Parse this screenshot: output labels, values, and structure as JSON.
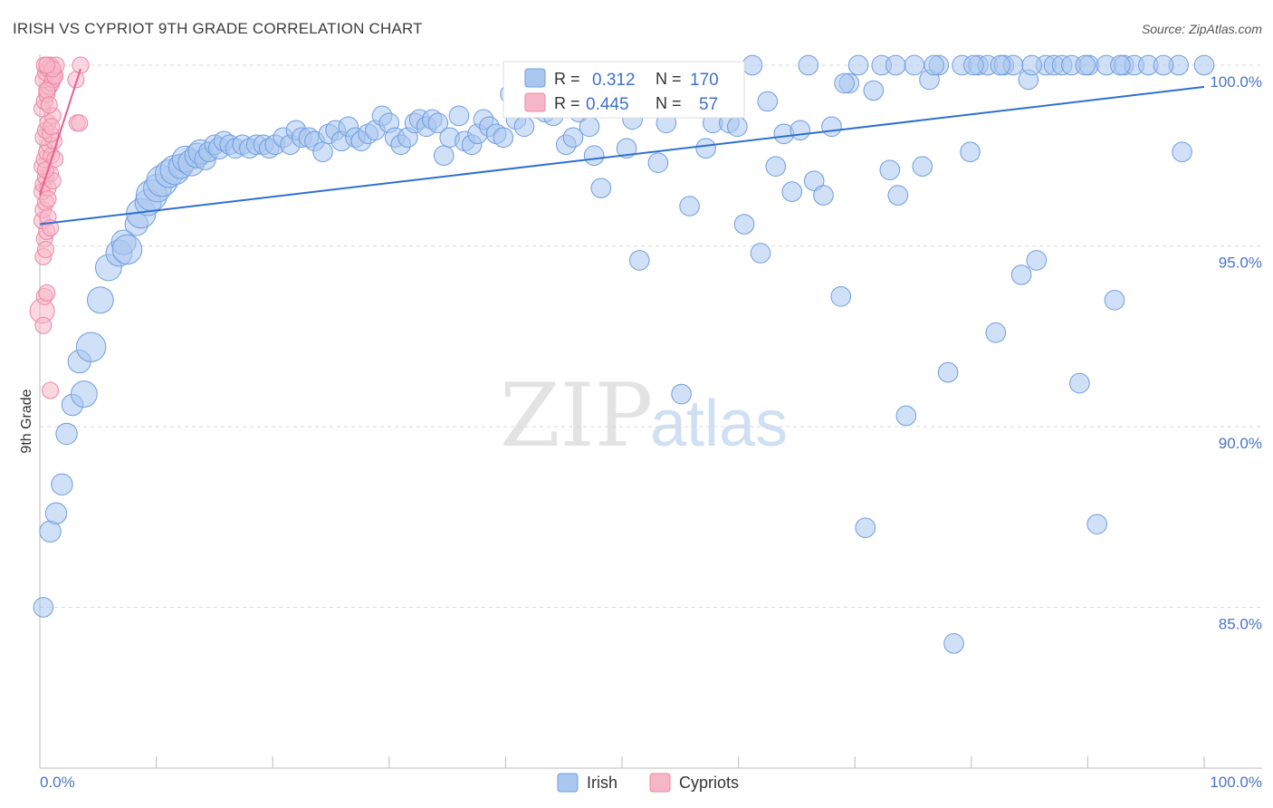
{
  "title": "IRISH VS CYPRIOT 9TH GRADE CORRELATION CHART",
  "source": "Source: ZipAtlas.com",
  "watermark": {
    "zip": "ZIP",
    "atlas": "atlas"
  },
  "colors": {
    "irish_fill": "#a9c7ef",
    "irish_stroke": "#6f9de0",
    "irish_line": "#2f6fd0",
    "cypriot_fill": "#f7b6c8",
    "cypriot_stroke": "#ec86a5",
    "cypriot_line": "#e8608e",
    "grid": "#d9d9d9",
    "tick_text": "#4a74c4"
  },
  "stats": {
    "irish": {
      "r_label": "R =",
      "r_value": "0.312",
      "n_label": "N =",
      "n_value": "170"
    },
    "cypriots": {
      "r_label": "R =",
      "r_value": "0.445",
      "n_label": "N =",
      "n_value": "57"
    }
  },
  "chart_data": {
    "type": "scatter",
    "title": "IRISH VS CYPRIOT 9TH GRADE CORRELATION CHART",
    "xlabel": "",
    "ylabel": "9th Grade",
    "xlim": [
      0,
      100
    ],
    "ylim": [
      80.8,
      100.3
    ],
    "x_tick_labels": [
      "0.0%",
      "100.0%"
    ],
    "y_ticks": [
      100,
      95,
      90,
      85
    ],
    "y_tick_labels": [
      "100.0%",
      "95.0%",
      "90.0%",
      "85.0%"
    ],
    "legend": [
      "Irish",
      "Cypriots"
    ],
    "series": [
      {
        "name": "Irish",
        "trendline": {
          "x": [
            0,
            100
          ],
          "y": [
            95.6,
            99.4
          ]
        },
        "points": [
          [
            0.3,
            85.0,
            1.2
          ],
          [
            0.9,
            87.1,
            1.3
          ],
          [
            1.4,
            87.6,
            1.3
          ],
          [
            1.9,
            88.4,
            1.3
          ],
          [
            2.3,
            89.8,
            1.3
          ],
          [
            2.8,
            90.6,
            1.3
          ],
          [
            3.4,
            91.8,
            1.4
          ],
          [
            3.8,
            90.9,
            1.6
          ],
          [
            4.4,
            92.2,
            1.8
          ],
          [
            5.2,
            93.5,
            1.6
          ],
          [
            5.9,
            94.4,
            1.6
          ],
          [
            6.8,
            94.8,
            1.6
          ],
          [
            7.2,
            95.1,
            1.5
          ],
          [
            7.5,
            94.9,
            1.8
          ],
          [
            8.3,
            95.6,
            1.4
          ],
          [
            8.7,
            95.9,
            1.8
          ],
          [
            9.3,
            96.2,
            1.6
          ],
          [
            9.6,
            96.4,
            1.9
          ],
          [
            10.1,
            96.6,
            1.7
          ],
          [
            10.5,
            96.8,
            1.9
          ],
          [
            11.1,
            97.0,
            1.7
          ],
          [
            11.6,
            97.1,
            1.8
          ],
          [
            12.1,
            97.2,
            1.5
          ],
          [
            12.5,
            97.4,
            1.6
          ],
          [
            13.0,
            97.3,
            1.6
          ],
          [
            13.5,
            97.5,
            1.5
          ],
          [
            13.8,
            97.6,
            1.5
          ],
          [
            14.2,
            97.4,
            1.3
          ],
          [
            14.5,
            97.6,
            1.2
          ],
          [
            15.0,
            97.8,
            1.2
          ],
          [
            15.4,
            97.7,
            1.3
          ],
          [
            15.8,
            97.9,
            1.2
          ],
          [
            16.3,
            97.8,
            1.2
          ],
          [
            16.8,
            97.7,
            1.2
          ],
          [
            17.4,
            97.8,
            1.2
          ],
          [
            18.0,
            97.7,
            1.2
          ],
          [
            18.6,
            97.8,
            1.2
          ],
          [
            19.2,
            97.8,
            1.2
          ],
          [
            19.7,
            97.7,
            1.2
          ],
          [
            20.2,
            97.8,
            1.2
          ],
          [
            20.9,
            98.0,
            1.2
          ],
          [
            21.5,
            97.8,
            1.2
          ],
          [
            22.0,
            98.2,
            1.2
          ],
          [
            22.5,
            98.0,
            1.2
          ],
          [
            23.1,
            98.0,
            1.2
          ],
          [
            23.6,
            97.9,
            1.2
          ],
          [
            24.3,
            97.6,
            1.2
          ],
          [
            24.8,
            98.1,
            1.2
          ],
          [
            25.4,
            98.2,
            1.2
          ],
          [
            25.9,
            97.9,
            1.2
          ],
          [
            26.5,
            98.3,
            1.2
          ],
          [
            27.1,
            98.0,
            1.2
          ],
          [
            27.6,
            97.9,
            1.2
          ],
          [
            28.2,
            98.1,
            1.2
          ],
          [
            28.8,
            98.2,
            1.2
          ],
          [
            29.4,
            98.6,
            1.2
          ],
          [
            30.0,
            98.4,
            1.2
          ],
          [
            30.5,
            98.0,
            1.2
          ],
          [
            31.0,
            97.8,
            1.2
          ],
          [
            31.6,
            98.0,
            1.2
          ],
          [
            32.2,
            98.4,
            1.2
          ],
          [
            32.6,
            98.5,
            1.2
          ],
          [
            33.2,
            98.3,
            1.2
          ],
          [
            33.7,
            98.5,
            1.2
          ],
          [
            34.2,
            98.4,
            1.2
          ],
          [
            34.7,
            97.5,
            1.2
          ],
          [
            35.2,
            98.0,
            1.2
          ],
          [
            36.0,
            98.6,
            1.2
          ],
          [
            36.5,
            97.9,
            1.2
          ],
          [
            37.1,
            97.8,
            1.2
          ],
          [
            37.6,
            98.1,
            1.2
          ],
          [
            38.1,
            98.5,
            1.2
          ],
          [
            38.6,
            98.3,
            1.2
          ],
          [
            39.2,
            98.1,
            1.2
          ],
          [
            39.8,
            98.0,
            1.2
          ],
          [
            40.4,
            99.2,
            1.2
          ],
          [
            40.9,
            98.5,
            1.2
          ],
          [
            41.6,
            98.3,
            1.2
          ],
          [
            42.1,
            99.0,
            1.2
          ],
          [
            42.7,
            98.8,
            1.2
          ],
          [
            43.4,
            98.7,
            1.2
          ],
          [
            44.1,
            98.6,
            1.2
          ],
          [
            44.6,
            99.1,
            1.2
          ],
          [
            45.2,
            97.8,
            1.2
          ],
          [
            45.8,
            98.0,
            1.2
          ],
          [
            46.3,
            98.7,
            1.2
          ],
          [
            47.2,
            98.3,
            1.2
          ],
          [
            47.6,
            97.5,
            1.2
          ],
          [
            48.2,
            96.6,
            1.2
          ],
          [
            49.0,
            98.9,
            1.2
          ],
          [
            49.7,
            99.3,
            1.2
          ],
          [
            50.4,
            97.7,
            1.2
          ],
          [
            50.9,
            98.5,
            1.2
          ],
          [
            51.5,
            94.6,
            1.2
          ],
          [
            52.2,
            99.0,
            1.2
          ],
          [
            53.1,
            97.3,
            1.2
          ],
          [
            53.8,
            98.4,
            1.2
          ],
          [
            54.5,
            99.6,
            1.2
          ],
          [
            55.1,
            90.9,
            1.2
          ],
          [
            55.8,
            96.1,
            1.2
          ],
          [
            56.5,
            99.3,
            1.2
          ],
          [
            57.2,
            97.7,
            1.2
          ],
          [
            57.8,
            98.4,
            1.2
          ],
          [
            58.5,
            98.9,
            1.2
          ],
          [
            59.2,
            98.4,
            1.2
          ],
          [
            59.9,
            98.3,
            1.2
          ],
          [
            60.5,
            95.6,
            1.2
          ],
          [
            61.2,
            100.0,
            1.2
          ],
          [
            61.9,
            94.8,
            1.2
          ],
          [
            62.5,
            99.0,
            1.2
          ],
          [
            63.2,
            97.2,
            1.2
          ],
          [
            63.9,
            98.1,
            1.2
          ],
          [
            64.6,
            96.5,
            1.2
          ],
          [
            65.3,
            98.2,
            1.2
          ],
          [
            66.0,
            100.0,
            1.2
          ],
          [
            66.5,
            96.8,
            1.2
          ],
          [
            67.3,
            96.4,
            1.2
          ],
          [
            68.0,
            98.3,
            1.2
          ],
          [
            68.8,
            93.6,
            1.2
          ],
          [
            69.5,
            99.5,
            1.2
          ],
          [
            70.3,
            100.0,
            1.2
          ],
          [
            70.9,
            87.2,
            1.2
          ],
          [
            71.6,
            99.3,
            1.2
          ],
          [
            72.3,
            100.0,
            1.2
          ],
          [
            73.0,
            97.1,
            1.2
          ],
          [
            73.7,
            96.4,
            1.2
          ],
          [
            74.4,
            90.3,
            1.2
          ],
          [
            75.1,
            100.0,
            1.2
          ],
          [
            75.8,
            97.2,
            1.2
          ],
          [
            76.4,
            99.6,
            1.2
          ],
          [
            77.2,
            100.0,
            1.2
          ],
          [
            78.0,
            91.5,
            1.2
          ],
          [
            78.5,
            84.0,
            1.2
          ],
          [
            79.2,
            100.0,
            1.2
          ],
          [
            79.9,
            97.6,
            1.2
          ],
          [
            80.6,
            100.0,
            1.2
          ],
          [
            81.4,
            100.0,
            1.2
          ],
          [
            82.1,
            92.6,
            1.2
          ],
          [
            82.8,
            100.0,
            1.2
          ],
          [
            83.6,
            100.0,
            1.2
          ],
          [
            84.3,
            94.2,
            1.2
          ],
          [
            84.9,
            99.6,
            1.2
          ],
          [
            85.6,
            94.6,
            1.2
          ],
          [
            86.4,
            100.0,
            1.2
          ],
          [
            87.1,
            100.0,
            1.2
          ],
          [
            87.8,
            100.0,
            1.2
          ],
          [
            88.6,
            100.0,
            1.2
          ],
          [
            89.3,
            91.2,
            1.2
          ],
          [
            90.1,
            100.0,
            1.2
          ],
          [
            90.8,
            87.3,
            1.2
          ],
          [
            91.6,
            100.0,
            1.2
          ],
          [
            92.3,
            93.5,
            1.2
          ],
          [
            93.1,
            100.0,
            1.2
          ],
          [
            94.0,
            100.0,
            1.2
          ],
          [
            95.2,
            100.0,
            1.2
          ],
          [
            97.8,
            100.0,
            1.2
          ],
          [
            100.0,
            100.0,
            1.2
          ],
          [
            96.5,
            100.0,
            1.2
          ],
          [
            98.1,
            97.6,
            1.2
          ],
          [
            89.8,
            100.0,
            1.2
          ],
          [
            92.8,
            100.0,
            1.2
          ],
          [
            85.2,
            100.0,
            1.2
          ],
          [
            82.5,
            100.0,
            1.2
          ],
          [
            80.2,
            100.0,
            1.2
          ],
          [
            76.8,
            100.0,
            1.2
          ],
          [
            73.5,
            100.0,
            1.2
          ],
          [
            69.1,
            99.5,
            1.2
          ]
        ]
      },
      {
        "name": "Cypriots",
        "trendline": {
          "x": [
            0,
            3.5
          ],
          "y": [
            96.4,
            99.9
          ]
        },
        "points": [
          [
            0.2,
            93.2,
            1.5
          ],
          [
            0.3,
            92.8,
            1.0
          ],
          [
            0.4,
            93.6,
            1.0
          ],
          [
            0.6,
            93.7,
            1.0
          ],
          [
            0.3,
            94.7,
            1.0
          ],
          [
            0.4,
            95.2,
            1.0
          ],
          [
            0.5,
            94.9,
            1.0
          ],
          [
            0.6,
            95.4,
            1.0
          ],
          [
            0.2,
            95.7,
            1.0
          ],
          [
            0.3,
            96.0,
            1.0
          ],
          [
            0.5,
            96.2,
            1.0
          ],
          [
            0.7,
            95.8,
            1.0
          ],
          [
            0.2,
            96.5,
            1.0
          ],
          [
            0.3,
            96.7,
            1.0
          ],
          [
            0.5,
            96.9,
            1.0
          ],
          [
            0.7,
            96.6,
            1.0
          ],
          [
            0.9,
            97.0,
            1.0
          ],
          [
            1.1,
            96.8,
            1.0
          ],
          [
            0.2,
            97.2,
            1.0
          ],
          [
            0.4,
            97.4,
            1.0
          ],
          [
            0.6,
            97.6,
            1.0
          ],
          [
            0.8,
            97.8,
            1.0
          ],
          [
            1.0,
            97.5,
            1.0
          ],
          [
            1.2,
            97.9,
            1.0
          ],
          [
            0.3,
            98.0,
            1.0
          ],
          [
            0.5,
            98.2,
            1.0
          ],
          [
            0.7,
            98.4,
            1.0
          ],
          [
            0.9,
            98.1,
            1.0
          ],
          [
            1.1,
            98.6,
            1.0
          ],
          [
            0.2,
            98.8,
            1.0
          ],
          [
            0.4,
            99.0,
            1.0
          ],
          [
            0.6,
            99.2,
            1.0
          ],
          [
            0.8,
            99.4,
            1.0
          ],
          [
            1.0,
            99.5,
            1.0
          ],
          [
            1.2,
            99.7,
            1.0
          ],
          [
            0.3,
            99.6,
            1.0
          ],
          [
            0.5,
            99.8,
            1.0
          ],
          [
            0.7,
            99.9,
            1.0
          ],
          [
            0.9,
            100.0,
            1.0
          ],
          [
            1.1,
            99.6,
            1.0
          ],
          [
            1.3,
            99.7,
            1.0
          ],
          [
            1.4,
            100.0,
            1.0
          ],
          [
            0.4,
            100.0,
            1.0
          ],
          [
            0.6,
            99.3,
            1.0
          ],
          [
            0.8,
            98.9,
            1.0
          ],
          [
            1.0,
            98.3,
            1.0
          ],
          [
            3.2,
            98.4,
            1.0
          ],
          [
            3.4,
            98.4,
            1.0
          ],
          [
            3.1,
            99.6,
            1.0
          ],
          [
            3.5,
            100.0,
            1.0
          ],
          [
            0.9,
            91.0,
            1.0
          ],
          [
            0.5,
            97.1,
            1.0
          ],
          [
            0.7,
            96.3,
            1.0
          ],
          [
            0.9,
            95.5,
            1.0
          ],
          [
            1.3,
            97.4,
            1.0
          ],
          [
            1.1,
            99.9,
            1.0
          ],
          [
            0.6,
            100.0,
            1.0
          ]
        ]
      }
    ]
  }
}
